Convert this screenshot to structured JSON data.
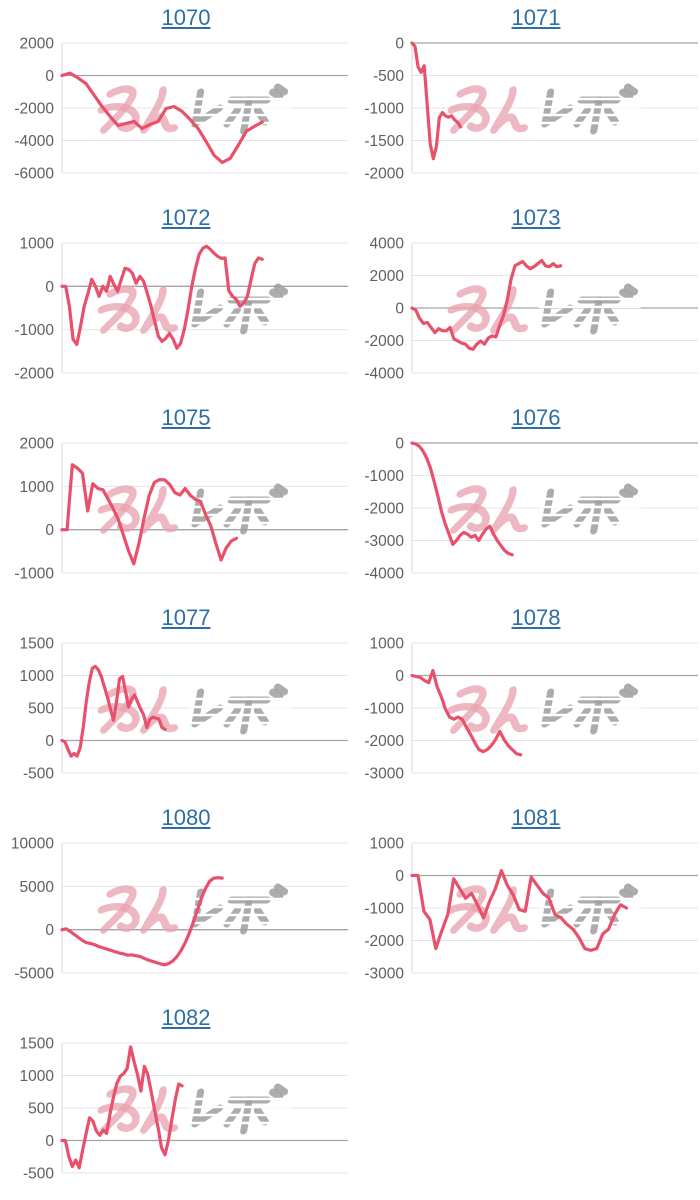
{
  "page": {
    "background": "#ffffff"
  },
  "watermark": {
    "text": "みんレポ",
    "pink_color": "rgba(231,160,173,0.75)",
    "gray_color": "rgba(158,158,158,0.85)"
  },
  "colors": {
    "series_line": "#e8506b",
    "link_blue": "#2d6fa5",
    "gridline": "#e4e4e4",
    "zero_line": "#a3a3a3",
    "axis_line": "#d9d9d9",
    "tick_label": "#5f5f5f"
  },
  "chart_data": [
    {
      "type": "line",
      "title": "1070",
      "ticks": [
        2000,
        0,
        -2000,
        -4000,
        -6000
      ],
      "end_frac": 0.7,
      "values": [
        0,
        150,
        -150,
        -500,
        -1200,
        -1900,
        -2520,
        -3080,
        -2950,
        -2830,
        -3260,
        -3010,
        -2830,
        -2030,
        -1910,
        -2210,
        -2700,
        -3260,
        -4060,
        -4920,
        -5350,
        -5100,
        -4300,
        -3440,
        -3140,
        -2870
      ]
    },
    {
      "type": "line",
      "title": "1071",
      "ticks": [
        0,
        -500,
        -1000,
        -1500,
        -2000
      ],
      "end_frac": 0.17,
      "values": [
        0,
        -50,
        -370,
        -450,
        -350,
        -950,
        -1550,
        -1780,
        -1600,
        -1150,
        -1070,
        -1120,
        -1140,
        -1120,
        -1180,
        -1220,
        -1290
      ]
    },
    {
      "type": "line",
      "title": "1072",
      "ticks": [
        1000,
        0,
        -1000,
        -2000
      ],
      "end_frac": 0.7,
      "values": [
        0,
        0,
        -460,
        -1225,
        -1340,
        -925,
        -460,
        -160,
        160,
        0,
        -230,
        0,
        -115,
        230,
        45,
        -115,
        160,
        415,
        390,
        300,
        70,
        230,
        115,
        -160,
        -460,
        -810,
        -1155,
        -1270,
        -1200,
        -1085,
        -1225,
        -1430,
        -1315,
        -995,
        -530,
        0,
        415,
        740,
        880,
        925,
        855,
        765,
        690,
        645,
        655,
        -100,
        -230,
        -300,
        -460,
        -390,
        -230,
        160,
        530,
        655,
        625
      ]
    },
    {
      "type": "line",
      "title": "1073",
      "ticks": [
        4000,
        2000,
        0,
        -2000,
        -4000
      ],
      "end_frac": 0.52,
      "values": [
        0,
        -130,
        -640,
        -950,
        -890,
        -1200,
        -1520,
        -1270,
        -1400,
        -1400,
        -1200,
        -1900,
        -2030,
        -2160,
        -2220,
        -2475,
        -2540,
        -2220,
        -2030,
        -2220,
        -1840,
        -1715,
        -1780,
        -1080,
        -445,
        510,
        1780,
        2600,
        2730,
        2860,
        2600,
        2410,
        2540,
        2730,
        2920,
        2600,
        2540,
        2730,
        2540,
        2600
      ]
    },
    {
      "type": "line",
      "title": "1075",
      "ticks": [
        2000,
        1000,
        0,
        -1000
      ],
      "end_frac": 0.61,
      "values": [
        0,
        0,
        1500,
        1420,
        1300,
        430,
        1060,
        950,
        920,
        700,
        480,
        230,
        -140,
        -500,
        -790,
        -310,
        270,
        790,
        1090,
        1155,
        1150,
        1040,
        855,
        800,
        950,
        790,
        700,
        650,
        340,
        90,
        -320,
        -700,
        -420,
        -260,
        -200
      ]
    },
    {
      "type": "line",
      "title": "1076",
      "ticks": [
        0,
        -1000,
        -2000,
        -3000,
        -4000
      ],
      "end_frac": 0.35,
      "values": [
        0,
        -30,
        -100,
        -250,
        -470,
        -780,
        -1190,
        -1650,
        -2130,
        -2500,
        -2810,
        -3120,
        -3000,
        -2840,
        -2750,
        -2810,
        -2900,
        -2840,
        -3000,
        -2810,
        -2650,
        -2560,
        -2810,
        -3000,
        -3160,
        -3310,
        -3400,
        -3440
      ]
    },
    {
      "type": "line",
      "title": "1077",
      "ticks": [
        1500,
        1000,
        500,
        0,
        -500
      ],
      "end_frac": 0.36,
      "values": [
        0,
        -20,
        -140,
        -240,
        -200,
        -240,
        -110,
        200,
        590,
        900,
        1110,
        1140,
        1090,
        980,
        825,
        670,
        485,
        310,
        590,
        950,
        985,
        750,
        515,
        640,
        700,
        590,
        485,
        390,
        200,
        325,
        360,
        345,
        330,
        200,
        170
      ]
    },
    {
      "type": "line",
      "title": "1078",
      "ticks": [
        1000,
        0,
        -1000,
        -2000,
        -3000
      ],
      "end_frac": 0.38,
      "values": [
        0,
        -30,
        -60,
        -155,
        -220,
        155,
        -345,
        -655,
        -1030,
        -1280,
        -1345,
        -1280,
        -1345,
        -1590,
        -1810,
        -2060,
        -2280,
        -2345,
        -2280,
        -2155,
        -1970,
        -1720,
        -1970,
        -2155,
        -2280,
        -2405,
        -2440
      ]
    },
    {
      "type": "line",
      "title": "1080",
      "ticks": [
        10000,
        5000,
        0,
        -5000
      ],
      "end_frac": 0.56,
      "values": [
        0,
        100,
        -200,
        -550,
        -900,
        -1250,
        -1500,
        -1600,
        -1750,
        -1950,
        -2100,
        -2250,
        -2400,
        -2550,
        -2700,
        -2800,
        -2950,
        -2900,
        -3000,
        -3100,
        -3300,
        -3500,
        -3650,
        -3800,
        -3950,
        -4050,
        -3900,
        -3600,
        -3100,
        -2400,
        -1500,
        -400,
        900,
        2300,
        3700,
        4800,
        5600,
        5950,
        6000,
        5950
      ]
    },
    {
      "type": "line",
      "title": "1081",
      "ticks": [
        1000,
        0,
        -1000,
        -2000,
        -3000
      ],
      "end_frac": 0.75,
      "values": [
        0,
        0,
        -1100,
        -1350,
        -2250,
        -1700,
        -1200,
        -100,
        -400,
        -700,
        -550,
        -900,
        -1300,
        -800,
        -400,
        150,
        -300,
        -600,
        -1050,
        -1100,
        -50,
        -300,
        -550,
        -700,
        -1200,
        -1300,
        -1500,
        -1650,
        -1900,
        -2250,
        -2300,
        -2250,
        -1800,
        -1650,
        -1200,
        -900,
        -1000
      ]
    },
    {
      "type": "line",
      "title": "1082",
      "ticks": [
        1500,
        1000,
        500,
        0,
        -500
      ],
      "end_frac": 0.42,
      "values": [
        0,
        0,
        -250,
        -400,
        -300,
        -420,
        -150,
        100,
        350,
        300,
        150,
        80,
        160,
        110,
        410,
        670,
        880,
        990,
        1030,
        1110,
        1440,
        1210,
        1015,
        760,
        1140,
        1015,
        750,
        460,
        200,
        -110,
        -220,
        0,
        320,
        630,
        870,
        840
      ]
    }
  ]
}
